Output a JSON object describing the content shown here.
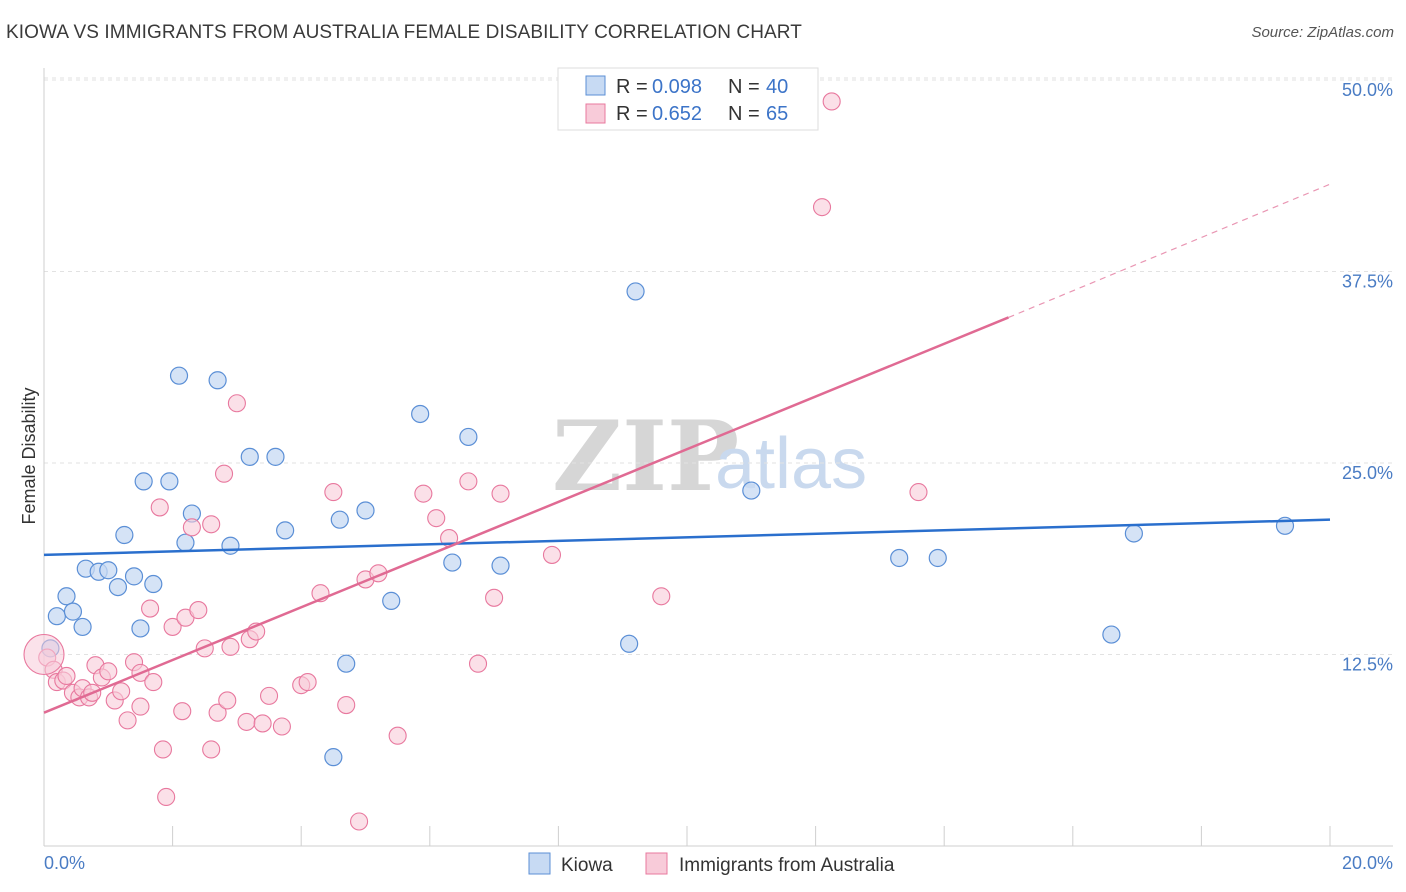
{
  "header": {
    "title": "KIOWA VS IMMIGRANTS FROM AUSTRALIA FEMALE DISABILITY CORRELATION CHART",
    "source": "Source: ZipAtlas.com"
  },
  "watermark": {
    "zip": "ZIP",
    "atlas": "atlas"
  },
  "chart_data": {
    "type": "scatter",
    "title": "KIOWA VS IMMIGRANTS FROM AUSTRALIA FEMALE DISABILITY CORRELATION CHART",
    "xlabel": "",
    "ylabel": "Female Disability",
    "xlim": [
      0,
      20
    ],
    "ylim": [
      0,
      50
    ],
    "x_tick_labels": [
      "0.0%",
      "20.0%"
    ],
    "y_ticks": [
      12.5,
      25.0,
      37.5,
      50.0
    ],
    "y_tick_labels": [
      "12.5%",
      "25.0%",
      "37.5%",
      "50.0%"
    ],
    "grid": true,
    "legend_position": "top-center",
    "colors": {
      "kiowa": "#5b8fd6",
      "kiowa_fill": "#c7daf3",
      "australia": "#e8789e",
      "australia_fill": "#f8cbd9",
      "kiowa_line": "#2a6fcd",
      "australia_line": "#e06a93"
    },
    "series": [
      {
        "name": "Kiowa",
        "R": "0.098",
        "N": "40",
        "trend": {
          "x0": 0,
          "y0": 19.0,
          "x1": 20,
          "y1": 21.3
        },
        "points": [
          [
            0.1,
            12.9
          ],
          [
            0.2,
            15.0
          ],
          [
            0.35,
            16.3
          ],
          [
            0.45,
            15.3
          ],
          [
            0.6,
            14.3
          ],
          [
            0.65,
            18.1
          ],
          [
            0.85,
            17.9
          ],
          [
            1.0,
            18.0
          ],
          [
            1.15,
            16.9
          ],
          [
            1.25,
            20.3
          ],
          [
            1.4,
            17.6
          ],
          [
            1.5,
            14.2
          ],
          [
            1.55,
            23.8
          ],
          [
            1.7,
            17.1
          ],
          [
            1.95,
            23.8
          ],
          [
            2.1,
            30.7
          ],
          [
            2.2,
            19.8
          ],
          [
            2.3,
            21.7
          ],
          [
            2.7,
            30.4
          ],
          [
            2.9,
            19.6
          ],
          [
            3.2,
            25.4
          ],
          [
            3.6,
            25.4
          ],
          [
            3.75,
            20.6
          ],
          [
            4.5,
            5.8
          ],
          [
            4.6,
            21.3
          ],
          [
            4.7,
            11.9
          ],
          [
            5.0,
            21.9
          ],
          [
            5.4,
            16.0
          ],
          [
            5.85,
            28.2
          ],
          [
            6.35,
            18.5
          ],
          [
            6.6,
            26.7
          ],
          [
            7.1,
            18.3
          ],
          [
            9.1,
            13.2
          ],
          [
            9.2,
            36.2
          ],
          [
            11.0,
            23.2
          ],
          [
            13.3,
            18.8
          ],
          [
            13.9,
            18.8
          ],
          [
            16.6,
            13.8
          ],
          [
            16.95,
            20.4
          ],
          [
            19.3,
            20.9
          ]
        ]
      },
      {
        "name": "Immigrants from Australia",
        "R": "0.652",
        "N": "65",
        "trend": {
          "x0": 0,
          "y0": 8.7,
          "x1": 15.0,
          "y1": 34.5
        },
        "trend_extension": {
          "x0": 15.0,
          "y0": 34.5,
          "x1": 20,
          "y1": 43.2
        },
        "points": [
          [
            0.05,
            12.3
          ],
          [
            0.15,
            11.5
          ],
          [
            0.2,
            10.7
          ],
          [
            0.3,
            10.8
          ],
          [
            0.35,
            11.1
          ],
          [
            0.45,
            10.0
          ],
          [
            0.55,
            9.7
          ],
          [
            0.6,
            10.3
          ],
          [
            0.7,
            9.7
          ],
          [
            0.75,
            10.0
          ],
          [
            0.8,
            11.8
          ],
          [
            0.9,
            11.0
          ],
          [
            1.0,
            11.4
          ],
          [
            1.1,
            9.5
          ],
          [
            1.2,
            10.1
          ],
          [
            1.3,
            8.2
          ],
          [
            1.4,
            12.0
          ],
          [
            1.5,
            11.3
          ],
          [
            1.5,
            9.1
          ],
          [
            1.65,
            15.5
          ],
          [
            1.7,
            10.7
          ],
          [
            1.8,
            22.1
          ],
          [
            1.85,
            6.3
          ],
          [
            1.9,
            3.2
          ],
          [
            2.0,
            14.3
          ],
          [
            2.15,
            8.8
          ],
          [
            2.2,
            14.9
          ],
          [
            2.3,
            20.8
          ],
          [
            2.4,
            15.4
          ],
          [
            2.5,
            12.9
          ],
          [
            2.6,
            6.3
          ],
          [
            2.6,
            21.0
          ],
          [
            2.7,
            8.7
          ],
          [
            2.8,
            24.3
          ],
          [
            2.85,
            9.5
          ],
          [
            2.9,
            13.0
          ],
          [
            3.0,
            28.9
          ],
          [
            3.15,
            8.1
          ],
          [
            3.2,
            13.5
          ],
          [
            3.3,
            14.0
          ],
          [
            3.4,
            8.0
          ],
          [
            3.5,
            9.8
          ],
          [
            3.7,
            7.8
          ],
          [
            4.0,
            10.5
          ],
          [
            4.1,
            10.7
          ],
          [
            4.3,
            16.5
          ],
          [
            4.5,
            23.1
          ],
          [
            4.7,
            9.2
          ],
          [
            4.9,
            1.6
          ],
          [
            5.0,
            17.4
          ],
          [
            5.2,
            17.8
          ],
          [
            5.5,
            7.2
          ],
          [
            5.9,
            23.0
          ],
          [
            6.1,
            21.4
          ],
          [
            6.3,
            20.1
          ],
          [
            6.6,
            23.8
          ],
          [
            6.75,
            11.9
          ],
          [
            7.0,
            16.2
          ],
          [
            7.1,
            23.0
          ],
          [
            7.9,
            19.0
          ],
          [
            9.6,
            16.3
          ],
          [
            12.1,
            41.7
          ],
          [
            12.25,
            48.6
          ],
          [
            13.6,
            23.1
          ],
          [
            0.0,
            12.5
          ]
        ]
      }
    ]
  },
  "legend": {
    "r_label": "R = ",
    "n_label": "N = ",
    "kiowa_r": "0.098",
    "kiowa_n": "40",
    "australia_r": "0.652",
    "australia_n": "65"
  },
  "bottom_legend": {
    "kiowa": "Kiowa",
    "australia": "Immigrants from Australia"
  }
}
